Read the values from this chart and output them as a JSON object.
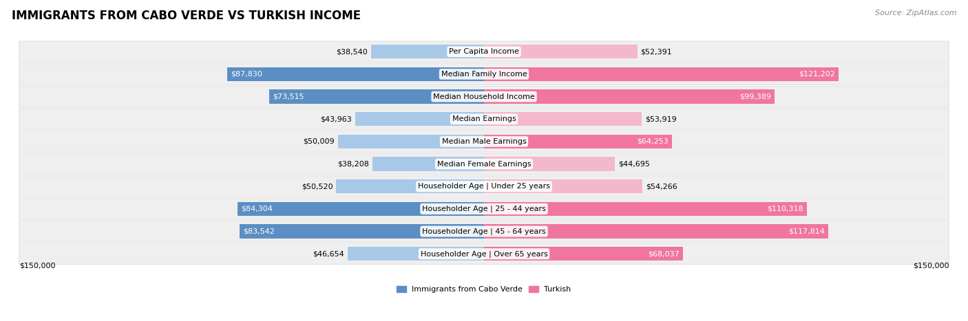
{
  "title": "IMMIGRANTS FROM CABO VERDE VS TURKISH INCOME",
  "source": "Source: ZipAtlas.com",
  "categories": [
    "Per Capita Income",
    "Median Family Income",
    "Median Household Income",
    "Median Earnings",
    "Median Male Earnings",
    "Median Female Earnings",
    "Householder Age | Under 25 years",
    "Householder Age | 25 - 44 years",
    "Householder Age | 45 - 64 years",
    "Householder Age | Over 65 years"
  ],
  "cabo_verde_values": [
    38540,
    87830,
    73515,
    43963,
    50009,
    38208,
    50520,
    84304,
    83542,
    46654
  ],
  "turkish_values": [
    52391,
    121202,
    99389,
    53919,
    64253,
    44695,
    54266,
    110318,
    117814,
    68037
  ],
  "cabo_verde_labels": [
    "$38,540",
    "$87,830",
    "$73,515",
    "$43,963",
    "$50,009",
    "$38,208",
    "$50,520",
    "$84,304",
    "$83,542",
    "$46,654"
  ],
  "turkish_labels": [
    "$52,391",
    "$121,202",
    "$99,389",
    "$53,919",
    "$64,253",
    "$44,695",
    "$54,266",
    "$110,318",
    "$117,814",
    "$68,037"
  ],
  "cabo_verde_color_light": "#a8c8e8",
  "cabo_verde_color_dark": "#5b8ec4",
  "turkish_color_light": "#f4b8cc",
  "turkish_color_dark": "#f075a0",
  "max_value": 150000,
  "x_label_left": "$150,000",
  "x_label_right": "$150,000",
  "legend_cabo_verde": "Immigrants from Cabo Verde",
  "legend_turkish": "Turkish",
  "row_bg_color": "#efefef",
  "row_border_color": "#d8d8d8",
  "title_fontsize": 12,
  "label_fontsize": 8,
  "category_fontsize": 8,
  "source_fontsize": 8,
  "cabo_dark_threshold": 60000,
  "turkish_dark_threshold": 60000
}
